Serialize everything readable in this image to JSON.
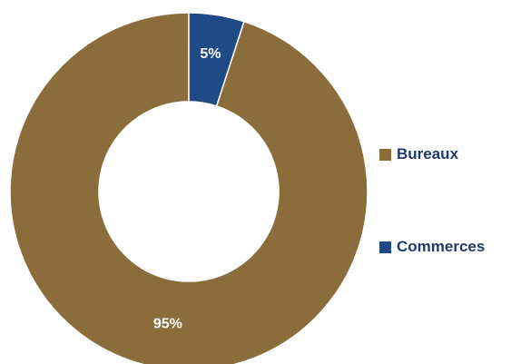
{
  "chart_data": {
    "type": "pie",
    "donut": true,
    "categories": [
      "Bureaux",
      "Commerces"
    ],
    "values": [
      95,
      5
    ],
    "labels": [
      "95%",
      "5%"
    ],
    "colors": [
      "#8b6d3b",
      "#1f4a85"
    ],
    "legend_position": "right"
  }
}
